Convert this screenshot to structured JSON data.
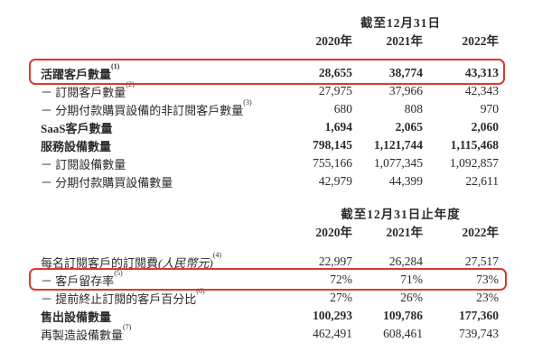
{
  "colors": {
    "background": "#ffffff",
    "text": "#2b2b2b",
    "highlight_box": "#d93a2e"
  },
  "sections": [
    {
      "period_header": "截至12月31日",
      "years": [
        "2020年",
        "2021年",
        "2022年"
      ],
      "rows": [
        {
          "prefix": "",
          "text": "活躍客戶數量",
          "sup": "(1)",
          "bold": true,
          "highlighted": true,
          "values": [
            "28,655",
            "38,774",
            "43,313"
          ]
        },
        {
          "prefix": "－ ",
          "text": "訂閱客戶數量",
          "sup": "(2)",
          "bold": false,
          "highlighted": false,
          "values": [
            "27,975",
            "37,966",
            "42,343"
          ]
        },
        {
          "prefix": "－ ",
          "text": "分期付款購買設備的非訂閱客戶數量",
          "sup": "(3)",
          "bold": false,
          "highlighted": false,
          "values": [
            "680",
            "808",
            "970"
          ]
        },
        {
          "prefix": "",
          "text": "SaaS客戶數量",
          "sup": "",
          "bold": true,
          "highlighted": false,
          "values": [
            "1,694",
            "2,065",
            "2,060"
          ]
        },
        {
          "prefix": "",
          "text": "服務設備數量",
          "sup": "",
          "bold": true,
          "highlighted": false,
          "values": [
            "798,145",
            "1,121,744",
            "1,115,468"
          ]
        },
        {
          "prefix": "－ ",
          "text": "訂閱設備數量",
          "sup": "",
          "bold": false,
          "highlighted": false,
          "values": [
            "755,166",
            "1,077,345",
            "1,092,857"
          ]
        },
        {
          "prefix": "－ ",
          "text": "分期付款購買設備數量",
          "sup": "",
          "bold": false,
          "highlighted": false,
          "values": [
            "42,979",
            "44,399",
            "22,611"
          ]
        }
      ]
    },
    {
      "period_header": "截至12月31日止年度",
      "years": [
        "2020年",
        "2021年",
        "2022年"
      ],
      "rows": [
        {
          "prefix": "",
          "text": "每名訂閱客戶的訂閱費",
          "italic": "(人民幣元)",
          "sup": "(4)",
          "bold": false,
          "highlighted": false,
          "values": [
            "22,997",
            "26,284",
            "27,517"
          ]
        },
        {
          "prefix": "－ ",
          "text": "客戶留存率",
          "sup": "(5)",
          "bold": false,
          "highlighted": true,
          "values": [
            "72%",
            "71%",
            "73%"
          ]
        },
        {
          "prefix": "－ ",
          "text": "提前終止訂閱的客戶百分比",
          "sup": "(6)",
          "bold": false,
          "highlighted": false,
          "values": [
            "27%",
            "26%",
            "23%"
          ]
        },
        {
          "prefix": "",
          "text": "售出設備數量",
          "sup": "",
          "bold": true,
          "highlighted": false,
          "values": [
            "100,293",
            "109,786",
            "177,360"
          ]
        },
        {
          "prefix": "",
          "text": "再製造設備數量",
          "sup": "(7)",
          "bold": false,
          "highlighted": false,
          "values": [
            "462,491",
            "608,461",
            "739,743"
          ]
        }
      ]
    }
  ]
}
